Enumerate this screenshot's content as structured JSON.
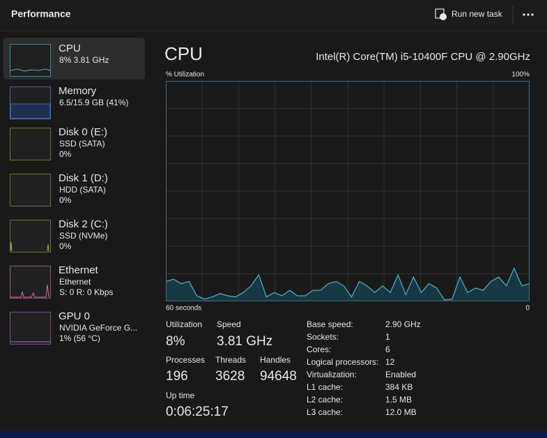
{
  "header": {
    "title": "Performance",
    "run_new_task": "Run new task"
  },
  "sidebar": [
    {
      "name": "CPU",
      "line1": "8% 3.81 GHz"
    },
    {
      "name": "Memory",
      "line1": "6.5/15.9 GB (41%)"
    },
    {
      "name": "Disk 0 (E:)",
      "line1": "SSD (SATA)",
      "line2": "0%"
    },
    {
      "name": "Disk 1 (D:)",
      "line1": "HDD (SATA)",
      "line2": "0%"
    },
    {
      "name": "Disk 2 (C:)",
      "line1": "SSD (NVMe)",
      "line2": "0%"
    },
    {
      "name": "Ethernet",
      "line1": "Ethernet",
      "line2": "S: 0 R: 0 Kbps"
    },
    {
      "name": "GPU 0",
      "line1": "NVIDIA GeForce G...",
      "line2": "1% (56 °C)"
    }
  ],
  "main": {
    "title": "CPU",
    "model": "Intel(R) Core(TM) i5-10400F CPU @ 2.90GHz",
    "graph": {
      "y_label": "% Utilization",
      "y_max": {
        "value": 100,
        "label": "100%"
      },
      "x_start": "60 seconds",
      "x_end": "0",
      "values": [
        9,
        10,
        8,
        9,
        2.5,
        1,
        2,
        3.5,
        2.5,
        2,
        4,
        7,
        12,
        2,
        4,
        2.5,
        5,
        2.5,
        2.5,
        5,
        5,
        8,
        9,
        7,
        2,
        9,
        7,
        4,
        7,
        4,
        12,
        3,
        11,
        4,
        8,
        6,
        0.6,
        1,
        11,
        4,
        6,
        5,
        9,
        11,
        7,
        15,
        7,
        8
      ]
    },
    "stats": [
      {
        "label": "Utilization",
        "value": "8%"
      },
      {
        "label": "Speed",
        "value": "3.81 GHz"
      },
      {
        "label": "Processes",
        "value": "196"
      },
      {
        "label": "Threads",
        "value": "3628"
      },
      {
        "label": "Handles",
        "value": "94648"
      },
      {
        "label": "Up time",
        "value": "0:06:25:17"
      }
    ],
    "details": [
      {
        "label": "Base speed:",
        "value": "2.90 GHz"
      },
      {
        "label": "Sockets:",
        "value": "1"
      },
      {
        "label": "Cores:",
        "value": "6"
      },
      {
        "label": "Logical processors:",
        "value": "12"
      },
      {
        "label": "Virtualization:",
        "value": "Enabled"
      },
      {
        "label": "L1 cache:",
        "value": "384 KB"
      },
      {
        "label": "L2 cache:",
        "value": "1.5 MB"
      },
      {
        "label": "L3 cache:",
        "value": "12.0 MB"
      }
    ]
  }
}
